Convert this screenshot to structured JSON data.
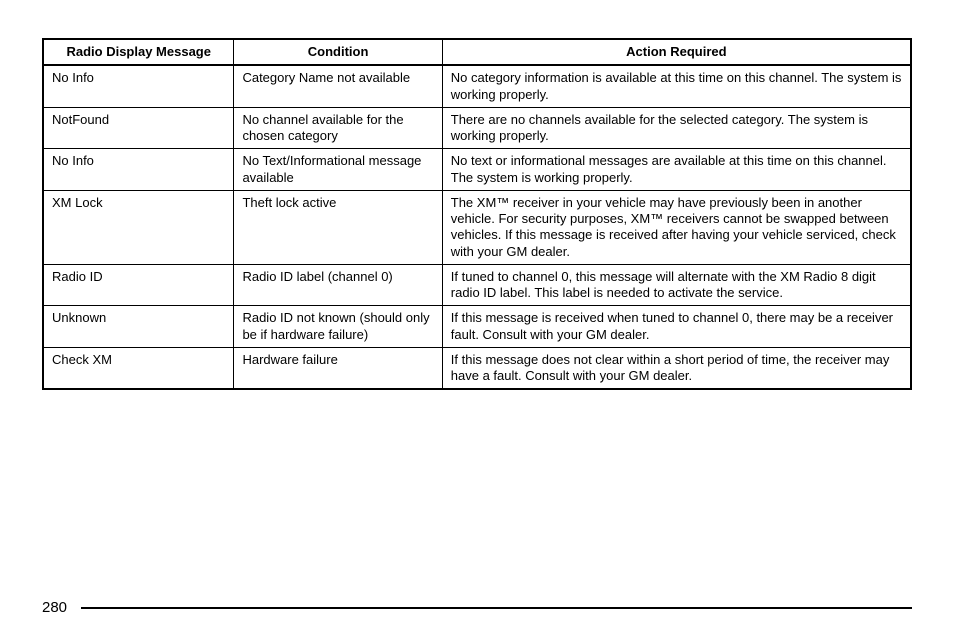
{
  "table": {
    "type": "table",
    "font_size_pt": 13,
    "text_color": "#000000",
    "border_color": "#000000",
    "background_color": "#ffffff",
    "column_widths_pct": [
      22,
      24,
      54
    ],
    "header_font_weight": "bold",
    "columns": [
      "Radio Display Message",
      "Condition",
      "Action Required"
    ],
    "rows": [
      {
        "msg": "No Info",
        "cond": "Category Name not available",
        "action": "No category information is available at this time on this channel. The system is working properly."
      },
      {
        "msg": "NotFound",
        "cond": "No channel available for the chosen category",
        "action": "There are no channels available for the selected category. The system is working properly."
      },
      {
        "msg": "No Info",
        "cond": "No Text/Informational message available",
        "action": "No text or informational messages are available at this time on this channel. The system is working properly."
      },
      {
        "msg": "XM Lock",
        "cond": "Theft lock active",
        "action": "The XM™ receiver in your vehicle may have previously been in another vehicle. For security purposes, XM™ receivers cannot be swapped between vehicles. If this message is received after having your vehicle serviced, check with your GM dealer."
      },
      {
        "msg": "Radio ID",
        "cond": "Radio ID label (channel 0)",
        "action": "If tuned to channel 0, this message will alternate with the XM Radio 8 digit radio ID label. This label is needed to activate the service."
      },
      {
        "msg": "Unknown",
        "cond": "Radio ID not known (should only be if hardware failure)",
        "action": "If this message is received when tuned to channel 0, there may be a receiver fault. Consult with your GM dealer."
      },
      {
        "msg": "Check XM",
        "cond": "Hardware failure",
        "action": "If this message does not clear within a short period of time, the receiver may have a fault. Consult with your GM dealer."
      }
    ]
  },
  "footer": {
    "page_number": "280",
    "line_color": "#000000"
  }
}
